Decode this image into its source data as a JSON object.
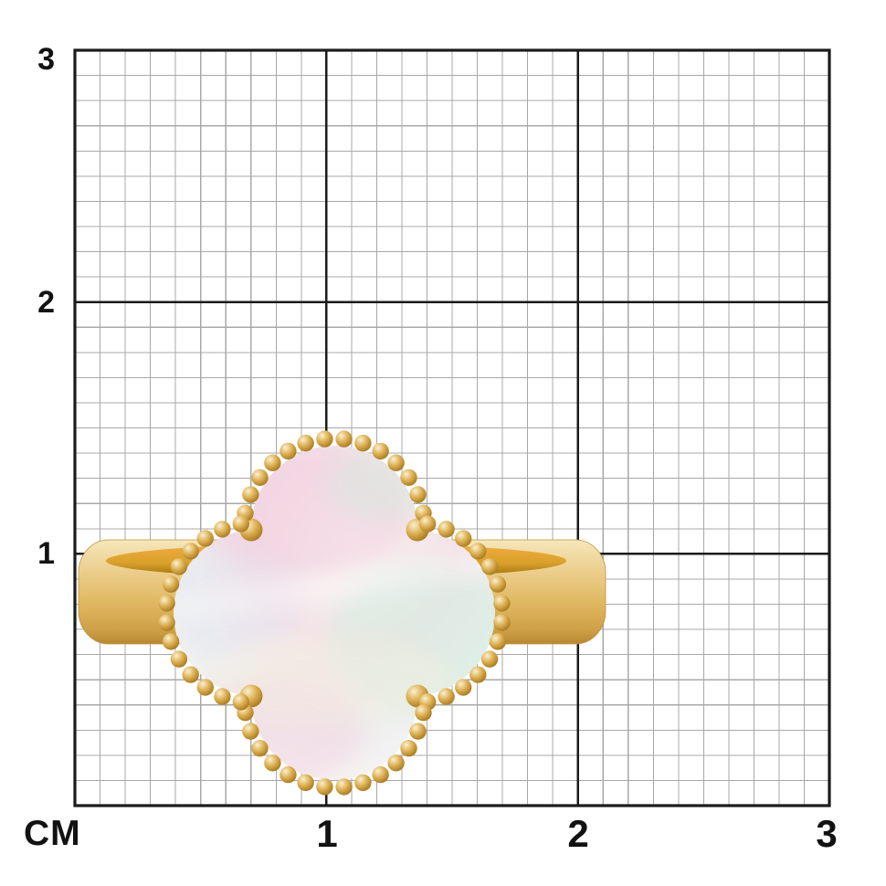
{
  "ruler": {
    "unit_label": "CM",
    "y_axis_ticks": [
      "3",
      "2",
      "1"
    ],
    "x_axis_ticks": [
      "1",
      "2",
      "3"
    ]
  },
  "colors": {
    "background": "#ffffff",
    "grid_minor": "#a8a8a8",
    "grid_major": "#1b1b1b",
    "label_text": "#121212",
    "gold_top": "#f6e8bd",
    "gold_face": "#eccf8e",
    "gold_mid": "#e0b861",
    "gold_low": "#cfa047",
    "gold_bottom": "#b2852f",
    "gold_stroke": "#c09344",
    "opening_bright": "#f2ab42",
    "opening_top": "#daa12b",
    "opening_dark": "#9e6a08",
    "bead_highlight": "#faf0cf",
    "bead_mid": "#ddb054",
    "bead_edge": "#97690f",
    "pearl_center": "#f8f4f2",
    "pearl_rose": "#f4e3e8",
    "pearl_cool": "#edf0f1",
    "pearl_edge": "#e8e2db",
    "pearl_pink": "#f2c9dd",
    "pearl_mint": "#cfeede",
    "pearl_lavender": "#e1e1f1",
    "pearl_ivory": "#f7eedd"
  }
}
